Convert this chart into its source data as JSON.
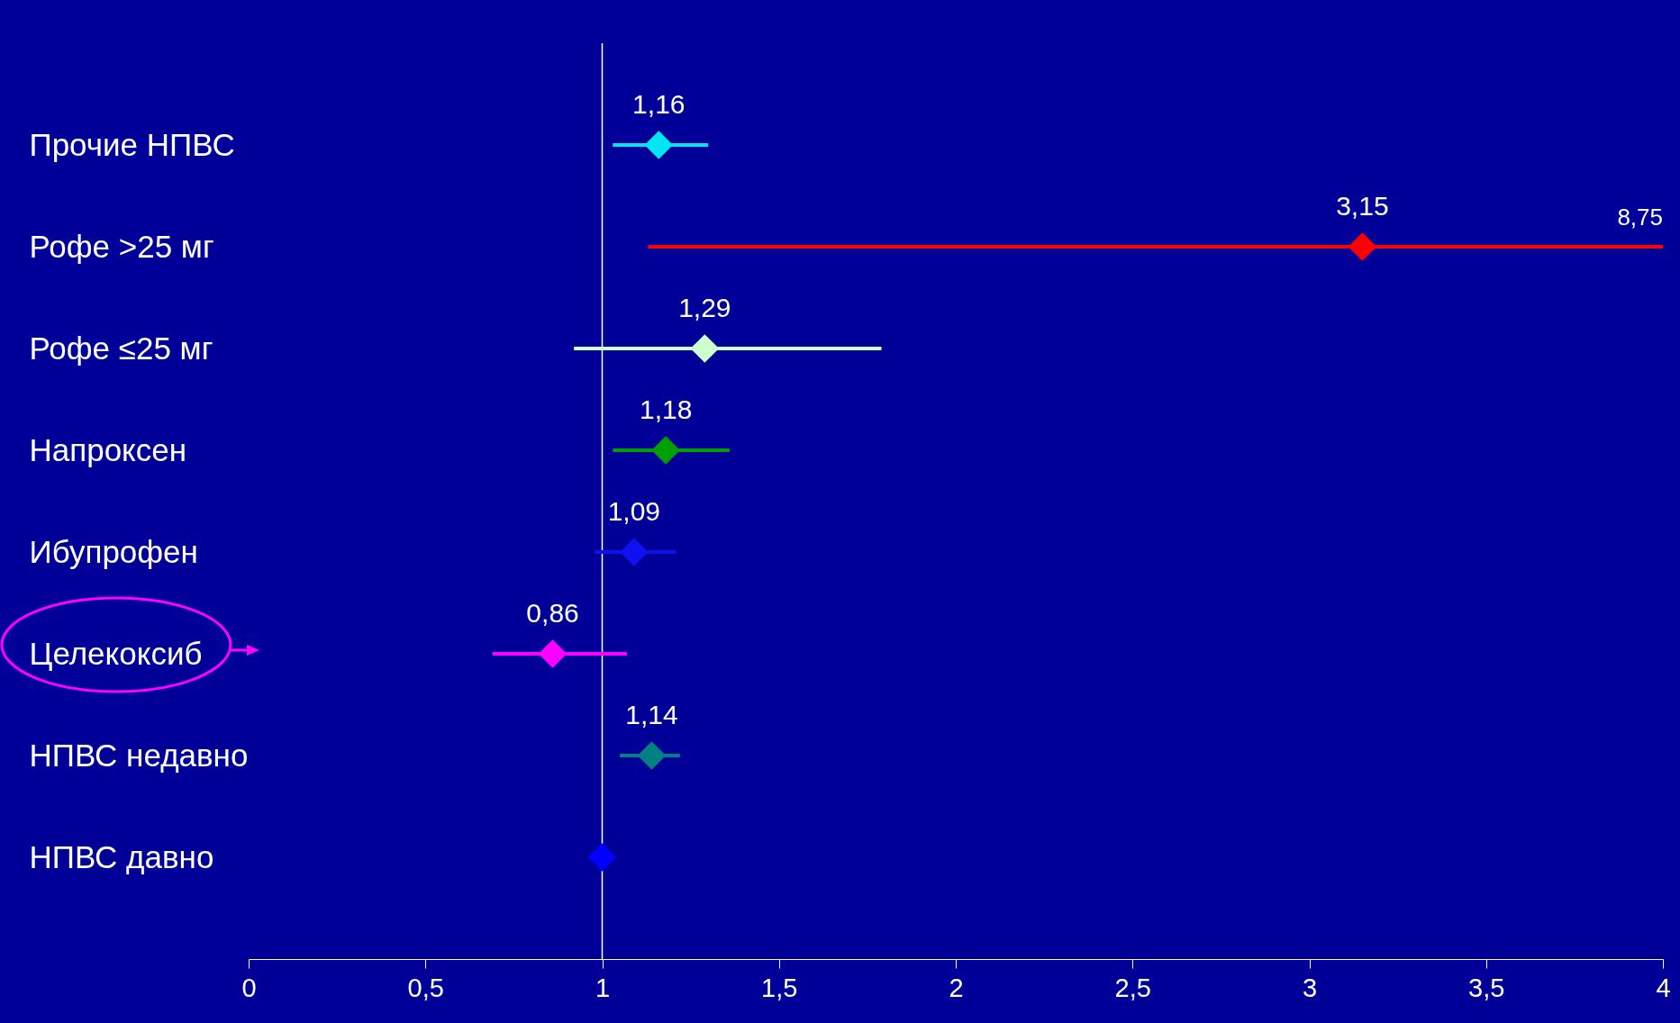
{
  "chart_data": {
    "type": "scatter",
    "orientation": "horizontal",
    "marker": "diamond",
    "categories": [
      "Прочие НПВС",
      "Рофе >25 мг",
      "Рофе ≤25 мг",
      "Напроксен",
      "Ибупрофен",
      "Целекоксиб",
      "НПВС недавно",
      "НПВС давно"
    ],
    "values": [
      1.16,
      3.15,
      1.29,
      1.18,
      1.09,
      0.86,
      1.14,
      1
    ],
    "colors": [
      "#00e5f0",
      "#ff0000",
      "#ccffcc",
      "#00a000",
      "#1010f0",
      "#ff00ff",
      "#008080",
      "#0000ff"
    ],
    "errors": [
      [
        1.03,
        1.3
      ],
      [
        1.13,
        8.75
      ],
      [
        0.92,
        1.79
      ],
      [
        1.03,
        1.36
      ],
      [
        0.98,
        1.21
      ],
      [
        0.69,
        1.07
      ],
      [
        1.05,
        1.22
      ],
      null
    ],
    "value_labels": [
      "1,16",
      "3,15",
      "1,29",
      "1,18",
      "1,09",
      "0,86",
      "1,14",
      null
    ],
    "xlim": [
      0,
      4
    ],
    "xticks": [
      0,
      {
        "value": 0.5,
        "label": "0,5"
      },
      1,
      {
        "value": 1.5,
        "label": "1,5"
      },
      2,
      {
        "value": 2.5,
        "label": "2,5"
      },
      3,
      {
        "value": 3.5,
        "label": "3,5"
      },
      4
    ],
    "ref_lines": [
      {
        "axis": "x",
        "value": 1,
        "color": "#ffffff"
      }
    ],
    "annotations": [
      {
        "text": "8,75",
        "x": 4,
        "y": "Рофе >25 мг"
      }
    ]
  }
}
